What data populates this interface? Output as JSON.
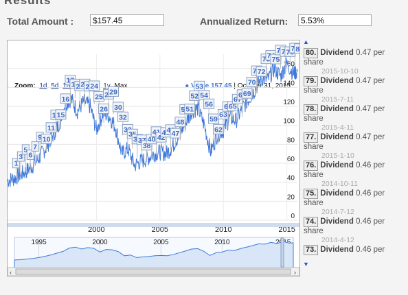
{
  "header": {
    "title": "Results"
  },
  "fields": {
    "total_label": "Total Amount :",
    "total_value": "$157.45",
    "return_label": "Annualized Return:",
    "return_value": "5.53%"
  },
  "toolbar": {
    "zoom_label": "Zoom:",
    "ranges": [
      "1d",
      "5d",
      "1m",
      "3m",
      "6m",
      "1y",
      "Max"
    ]
  },
  "legend": {
    "series_label": "Value 157.45",
    "date": "| October 31, 2015"
  },
  "chart_data": {
    "type": "line",
    "x_start": 1993.0,
    "x_end": 2015.83,
    "ylim": [
      0,
      175
    ],
    "y_ticks": [
      0,
      20,
      40,
      60,
      80,
      100,
      120,
      140,
      160
    ],
    "x_ticks": [
      2000,
      2005,
      2010,
      2015
    ],
    "nav_ticks": [
      "1995",
      "2000",
      "2005",
      "2010",
      "2015"
    ],
    "series": [
      {
        "color": "#3f78d9",
        "x": [
          1993.0,
          1993.5,
          1994.0,
          1994.5,
          1995.0,
          1995.5,
          1996.0,
          1996.5,
          1997.0,
          1997.5,
          1998.0,
          1998.5,
          1999.0,
          1999.5,
          2000.0,
          2000.5,
          2001.0,
          2001.5,
          2002.0,
          2002.5,
          2003.0,
          2003.5,
          2004.0,
          2004.5,
          2005.0,
          2005.5,
          2006.0,
          2006.5,
          2007.0,
          2007.5,
          2008.0,
          2008.5,
          2009.0,
          2009.5,
          2010.0,
          2010.5,
          2011.0,
          2011.5,
          2012.0,
          2012.5,
          2013.0,
          2013.5,
          2014.0,
          2014.5,
          2015.0,
          2015.5,
          2015.83
        ],
        "y": [
          42,
          44,
          48,
          52,
          58,
          66,
          76,
          88,
          100,
          122,
          128,
          115,
          125,
          120,
          95,
          112,
          110,
          98,
          70,
          75,
          58,
          62,
          65,
          70,
          72,
          70,
          78,
          90,
          102,
          115,
          118,
          100,
          72,
          90,
          95,
          108,
          105,
          118,
          128,
          138,
          150,
          148,
          160,
          152,
          165,
          155,
          157
        ]
      }
    ],
    "flags": [
      "1",
      "3",
      "5",
      "6",
      "7",
      "9",
      "10",
      "11",
      "13",
      "15",
      "16",
      "17",
      "18",
      "20",
      "21",
      "22",
      "24",
      "25",
      "26",
      "27",
      "29",
      "30",
      "32",
      "33",
      "35",
      "36",
      "37",
      "38",
      "40",
      "41",
      "42",
      "43",
      "46",
      "47",
      "48",
      "50",
      "51",
      "52",
      "53",
      "54",
      "56",
      "59",
      "62",
      "63",
      "64",
      "65",
      "67",
      "68",
      "69",
      "70",
      "71",
      "72",
      "73",
      "74",
      "75",
      "76",
      "77",
      "78",
      "79",
      "80"
    ]
  },
  "dividends": [
    {
      "num": "80.",
      "label": "Dividend",
      "amount": "0.47 per share",
      "date": "2015-10-10"
    },
    {
      "num": "79.",
      "label": "Dividend",
      "amount": "0.47 per share",
      "date": "2015-7-11"
    },
    {
      "num": "78.",
      "label": "Dividend",
      "amount": "0.47 per share",
      "date": "2015-4-11"
    },
    {
      "num": "77.",
      "label": "Dividend",
      "amount": "0.47 per share",
      "date": "2015-1-10"
    },
    {
      "num": "76.",
      "label": "Dividend",
      "amount": "0.46 per share",
      "date": "2014-10-11"
    },
    {
      "num": "75.",
      "label": "Dividend",
      "amount": "0.46 per share",
      "date": "2014-7-12"
    },
    {
      "num": "74.",
      "label": "Dividend",
      "amount": "0.46 per share",
      "date": "2014-4-12"
    },
    {
      "num": "73.",
      "label": "Dividend",
      "amount": "0.46 per",
      "date": ""
    }
  ]
}
